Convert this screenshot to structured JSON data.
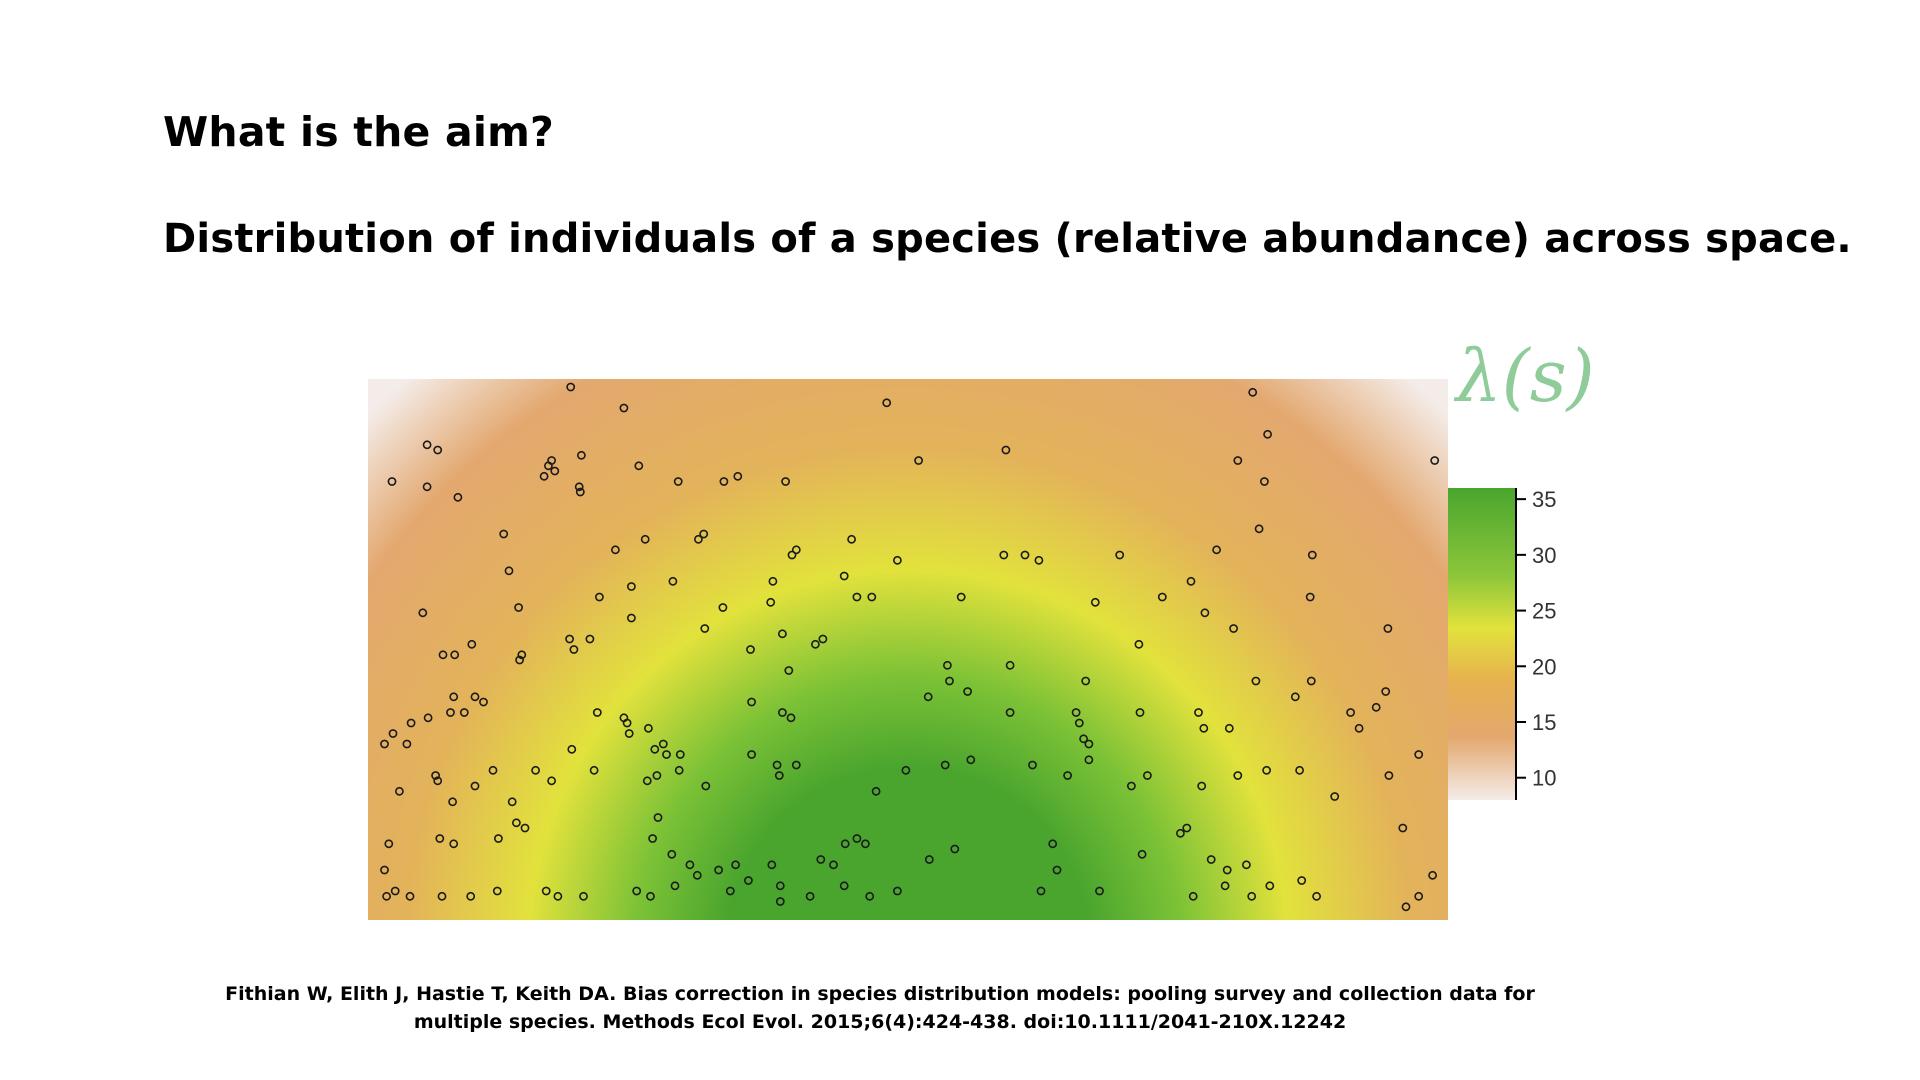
{
  "slide": {
    "heading": "What is the aim?",
    "subheading": "Distribution of individuals of a species (relative abundance) across space.",
    "intensity_label": "λ(s)",
    "citation_line1": "Fithian W, Elith J, Hastie T, Keith DA. Bias correction in species distribution models: pooling survey and collection data for",
    "citation_line2": "multiple species. Methods Ecol Evol. 2015;6(4):424-438. doi:10.1111/2041-210X.12242"
  },
  "colors": {
    "high": "#4aa52e",
    "mid": "#e2e23c",
    "low": "#e3a86f",
    "lowest": "#f4ece9",
    "lambda_label": "#8fcc9a"
  },
  "chart_data": {
    "type": "heatmap",
    "description_of_surface": "smooth intensity field, highest at bottom-centre, decreasing radially toward the top corners",
    "colorbar": {
      "ticks": [
        35,
        30,
        25,
        20,
        15,
        10
      ],
      "range": [
        8,
        36
      ]
    },
    "axes_shown": false,
    "points": [
      [
        0.015,
        0.18
      ],
      [
        0.048,
        0.11
      ],
      [
        0.058,
        0.12
      ],
      [
        0.077,
        0.21
      ],
      [
        0.183,
        0.0
      ],
      [
        0.193,
        0.13
      ],
      [
        0.233,
        0.04
      ],
      [
        0.48,
        0.03
      ],
      [
        0.51,
        0.14
      ],
      [
        0.824,
        0.01
      ],
      [
        0.838,
        0.09
      ],
      [
        0.995,
        0.14
      ],
      [
        0.048,
        0.19
      ],
      [
        0.162,
        0.15
      ],
      [
        0.158,
        0.17
      ],
      [
        0.191,
        0.19
      ],
      [
        0.192,
        0.2
      ],
      [
        0.165,
        0.14
      ],
      [
        0.168,
        0.16
      ],
      [
        0.247,
        0.15
      ],
      [
        0.284,
        0.18
      ],
      [
        0.327,
        0.18
      ],
      [
        0.34,
        0.17
      ],
      [
        0.385,
        0.18
      ],
      [
        0.592,
        0.12
      ],
      [
        0.81,
        0.14
      ],
      [
        0.835,
        0.18
      ],
      [
        0.88,
        0.32
      ],
      [
        0.12,
        0.28
      ],
      [
        0.225,
        0.31
      ],
      [
        0.253,
        0.29
      ],
      [
        0.303,
        0.29
      ],
      [
        0.308,
        0.28
      ],
      [
        0.373,
        0.37
      ],
      [
        0.391,
        0.32
      ],
      [
        0.395,
        0.31
      ],
      [
        0.44,
        0.36
      ],
      [
        0.447,
        0.29
      ],
      [
        0.49,
        0.33
      ],
      [
        0.59,
        0.32
      ],
      [
        0.61,
        0.32
      ],
      [
        0.623,
        0.33
      ],
      [
        0.699,
        0.32
      ],
      [
        0.766,
        0.37
      ],
      [
        0.79,
        0.31
      ],
      [
        0.83,
        0.27
      ],
      [
        0.044,
        0.43
      ],
      [
        0.125,
        0.35
      ],
      [
        0.134,
        0.42
      ],
      [
        0.21,
        0.4
      ],
      [
        0.24,
        0.38
      ],
      [
        0.279,
        0.37
      ],
      [
        0.326,
        0.42
      ],
      [
        0.371,
        0.41
      ],
      [
        0.452,
        0.4
      ],
      [
        0.466,
        0.4
      ],
      [
        0.55,
        0.4
      ],
      [
        0.676,
        0.41
      ],
      [
        0.739,
        0.4
      ],
      [
        0.779,
        0.43
      ],
      [
        0.878,
        0.4
      ],
      [
        0.951,
        0.46
      ],
      [
        0.063,
        0.51
      ],
      [
        0.074,
        0.51
      ],
      [
        0.09,
        0.49
      ],
      [
        0.135,
        0.52
      ],
      [
        0.137,
        0.51
      ],
      [
        0.182,
        0.48
      ],
      [
        0.186,
        0.5
      ],
      [
        0.201,
        0.48
      ],
      [
        0.24,
        0.44
      ],
      [
        0.309,
        0.46
      ],
      [
        0.352,
        0.5
      ],
      [
        0.382,
        0.47
      ],
      [
        0.388,
        0.54
      ],
      [
        0.413,
        0.49
      ],
      [
        0.42,
        0.48
      ],
      [
        0.537,
        0.53
      ],
      [
        0.539,
        0.56
      ],
      [
        0.596,
        0.53
      ],
      [
        0.667,
        0.56
      ],
      [
        0.717,
        0.49
      ],
      [
        0.806,
        0.46
      ],
      [
        0.827,
        0.56
      ],
      [
        0.864,
        0.59
      ],
      [
        0.879,
        0.56
      ],
      [
        0.949,
        0.58
      ],
      [
        0.008,
        0.68
      ],
      [
        0.016,
        0.66
      ],
      [
        0.029,
        0.68
      ],
      [
        0.033,
        0.64
      ],
      [
        0.049,
        0.63
      ],
      [
        0.07,
        0.62
      ],
      [
        0.073,
        0.59
      ],
      [
        0.083,
        0.62
      ],
      [
        0.093,
        0.59
      ],
      [
        0.101,
        0.6
      ],
      [
        0.184,
        0.69
      ],
      [
        0.208,
        0.62
      ],
      [
        0.233,
        0.63
      ],
      [
        0.236,
        0.64
      ],
      [
        0.238,
        0.66
      ],
      [
        0.256,
        0.65
      ],
      [
        0.262,
        0.69
      ],
      [
        0.27,
        0.68
      ],
      [
        0.273,
        0.7
      ],
      [
        0.286,
        0.7
      ],
      [
        0.353,
        0.6
      ],
      [
        0.382,
        0.62
      ],
      [
        0.39,
        0.63
      ],
      [
        0.519,
        0.59
      ],
      [
        0.556,
        0.58
      ],
      [
        0.596,
        0.62
      ],
      [
        0.658,
        0.62
      ],
      [
        0.661,
        0.64
      ],
      [
        0.665,
        0.67
      ],
      [
        0.67,
        0.68
      ],
      [
        0.718,
        0.62
      ],
      [
        0.773,
        0.62
      ],
      [
        0.778,
        0.65
      ],
      [
        0.802,
        0.65
      ],
      [
        0.916,
        0.62
      ],
      [
        0.924,
        0.65
      ],
      [
        0.94,
        0.61
      ],
      [
        0.022,
        0.77
      ],
      [
        0.058,
        0.75
      ],
      [
        0.056,
        0.74
      ],
      [
        0.072,
        0.79
      ],
      [
        0.093,
        0.76
      ],
      [
        0.11,
        0.73
      ],
      [
        0.128,
        0.79
      ],
      [
        0.15,
        0.73
      ],
      [
        0.165,
        0.75
      ],
      [
        0.205,
        0.73
      ],
      [
        0.255,
        0.75
      ],
      [
        0.264,
        0.74
      ],
      [
        0.285,
        0.73
      ],
      [
        0.31,
        0.76
      ],
      [
        0.353,
        0.7
      ],
      [
        0.377,
        0.72
      ],
      [
        0.379,
        0.74
      ],
      [
        0.395,
        0.72
      ],
      [
        0.47,
        0.77
      ],
      [
        0.498,
        0.73
      ],
      [
        0.535,
        0.72
      ],
      [
        0.559,
        0.71
      ],
      [
        0.617,
        0.72
      ],
      [
        0.65,
        0.74
      ],
      [
        0.67,
        0.71
      ],
      [
        0.71,
        0.76
      ],
      [
        0.725,
        0.74
      ],
      [
        0.776,
        0.76
      ],
      [
        0.81,
        0.74
      ],
      [
        0.837,
        0.73
      ],
      [
        0.868,
        0.73
      ],
      [
        0.901,
        0.78
      ],
      [
        0.952,
        0.74
      ],
      [
        0.98,
        0.7
      ],
      [
        0.012,
        0.87
      ],
      [
        0.008,
        0.92
      ],
      [
        0.06,
        0.86
      ],
      [
        0.073,
        0.87
      ],
      [
        0.115,
        0.86
      ],
      [
        0.132,
        0.83
      ],
      [
        0.14,
        0.84
      ],
      [
        0.26,
        0.86
      ],
      [
        0.265,
        0.82
      ],
      [
        0.278,
        0.89
      ],
      [
        0.295,
        0.91
      ],
      [
        0.322,
        0.92
      ],
      [
        0.338,
        0.91
      ],
      [
        0.372,
        0.91
      ],
      [
        0.418,
        0.9
      ],
      [
        0.43,
        0.91
      ],
      [
        0.441,
        0.87
      ],
      [
        0.452,
        0.86
      ],
      [
        0.46,
        0.87
      ],
      [
        0.52,
        0.9
      ],
      [
        0.544,
        0.88
      ],
      [
        0.636,
        0.87
      ],
      [
        0.64,
        0.92
      ],
      [
        0.72,
        0.89
      ],
      [
        0.756,
        0.85
      ],
      [
        0.762,
        0.84
      ],
      [
        0.785,
        0.9
      ],
      [
        0.8,
        0.92
      ],
      [
        0.818,
        0.91
      ],
      [
        0.965,
        0.84
      ],
      [
        0.993,
        0.93
      ],
      [
        0.01,
        0.97
      ],
      [
        0.018,
        0.96
      ],
      [
        0.032,
        0.97
      ],
      [
        0.062,
        0.97
      ],
      [
        0.089,
        0.97
      ],
      [
        0.114,
        0.96
      ],
      [
        0.16,
        0.96
      ],
      [
        0.171,
        0.97
      ],
      [
        0.195,
        0.97
      ],
      [
        0.245,
        0.96
      ],
      [
        0.258,
        0.97
      ],
      [
        0.281,
        0.95
      ],
      [
        0.302,
        0.93
      ],
      [
        0.333,
        0.96
      ],
      [
        0.35,
        0.94
      ],
      [
        0.38,
        0.95
      ],
      [
        0.38,
        0.98
      ],
      [
        0.408,
        0.97
      ],
      [
        0.44,
        0.95
      ],
      [
        0.464,
        0.97
      ],
      [
        0.49,
        0.96
      ],
      [
        0.625,
        0.96
      ],
      [
        0.68,
        0.96
      ],
      [
        0.768,
        0.97
      ],
      [
        0.798,
        0.95
      ],
      [
        0.823,
        0.97
      ],
      [
        0.84,
        0.95
      ],
      [
        0.98,
        0.97
      ],
      [
        0.968,
        0.99
      ],
      [
        0.884,
        0.97
      ],
      [
        0.87,
        0.94
      ]
    ]
  }
}
